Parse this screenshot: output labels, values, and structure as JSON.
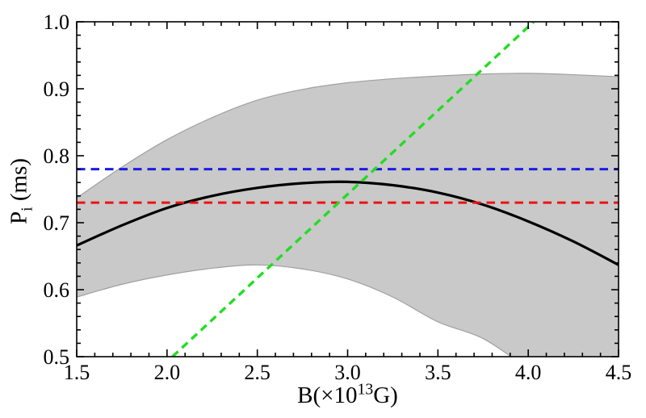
{
  "chart_data": {
    "type": "line",
    "title": "",
    "xlabel": "B(×10^13 G)",
    "ylabel": "P_i (ms)",
    "xlim": [
      1.5,
      4.5
    ],
    "ylim": [
      0.5,
      1.0
    ],
    "grid": false,
    "legend": null,
    "x_tick_values": [
      1.5,
      2.0,
      2.5,
      3.0,
      3.5,
      4.0,
      4.5
    ],
    "x_tick_labels": [
      "1.5",
      "2.0",
      "2.5",
      "3.0",
      "3.5",
      "4.0",
      "4.5"
    ],
    "x_minor_step": 0.1,
    "y_tick_values": [
      0.5,
      0.6,
      0.7,
      0.8,
      0.9,
      1.0
    ],
    "y_tick_labels": [
      "0.5",
      "0.6",
      "0.7",
      "0.8",
      "0.9",
      "1.0"
    ],
    "y_minor_step": 0.02,
    "band": {
      "name": "uncertainty-band",
      "x": [
        1.5,
        1.75,
        2.0,
        2.25,
        2.5,
        2.75,
        3.0,
        3.25,
        3.5,
        3.75,
        4.0,
        4.25,
        4.5
      ],
      "upper": [
        0.737,
        0.783,
        0.824,
        0.857,
        0.883,
        0.899,
        0.909,
        0.915,
        0.919,
        0.922,
        0.923,
        0.921,
        0.918
      ],
      "lower": [
        0.589,
        0.608,
        0.622,
        0.632,
        0.637,
        0.631,
        0.616,
        0.589,
        0.552,
        0.527,
        0.482,
        0.437,
        0.39
      ],
      "fill": "#c9c9c9",
      "edge": "#a0a0a0"
    },
    "series": [
      {
        "name": "central-curve",
        "style": "solid",
        "color": "#000000",
        "width": 3.2,
        "x": [
          1.5,
          1.75,
          2.0,
          2.25,
          2.5,
          2.75,
          3.0,
          3.25,
          3.5,
          3.75,
          4.0,
          4.25,
          4.5
        ],
        "y": [
          0.666,
          0.696,
          0.722,
          0.74,
          0.752,
          0.759,
          0.761,
          0.756,
          0.745,
          0.727,
          0.702,
          0.672,
          0.637
        ]
      },
      {
        "name": "blue-dashed-horizontal",
        "style": "dashed",
        "color": "#1a1ae6",
        "width": 3,
        "dash": "10.5,7",
        "y_const": 0.78
      },
      {
        "name": "red-dashed-horizontal",
        "style": "dashed",
        "color": "#ee1111",
        "width": 3,
        "dash": "10.5,7",
        "y_const": 0.73
      },
      {
        "name": "green-dashed-line",
        "style": "dashed",
        "color": "#22dd22",
        "width": 3.4,
        "dash": "9.5,6.5",
        "x": [
          2.03,
          4.03
        ],
        "y": [
          0.5,
          1.0
        ]
      }
    ]
  },
  "labels": {
    "ylabel_parts": {
      "main": "P",
      "sub": "i",
      "rest": " (ms)"
    },
    "xlabel_parts": {
      "pre": "B(×10",
      "sup": "13",
      "post": "G)"
    }
  },
  "colors": {
    "background": "#ffffff",
    "frame": "#000000",
    "tick": "#000000",
    "text": "#000000"
  }
}
